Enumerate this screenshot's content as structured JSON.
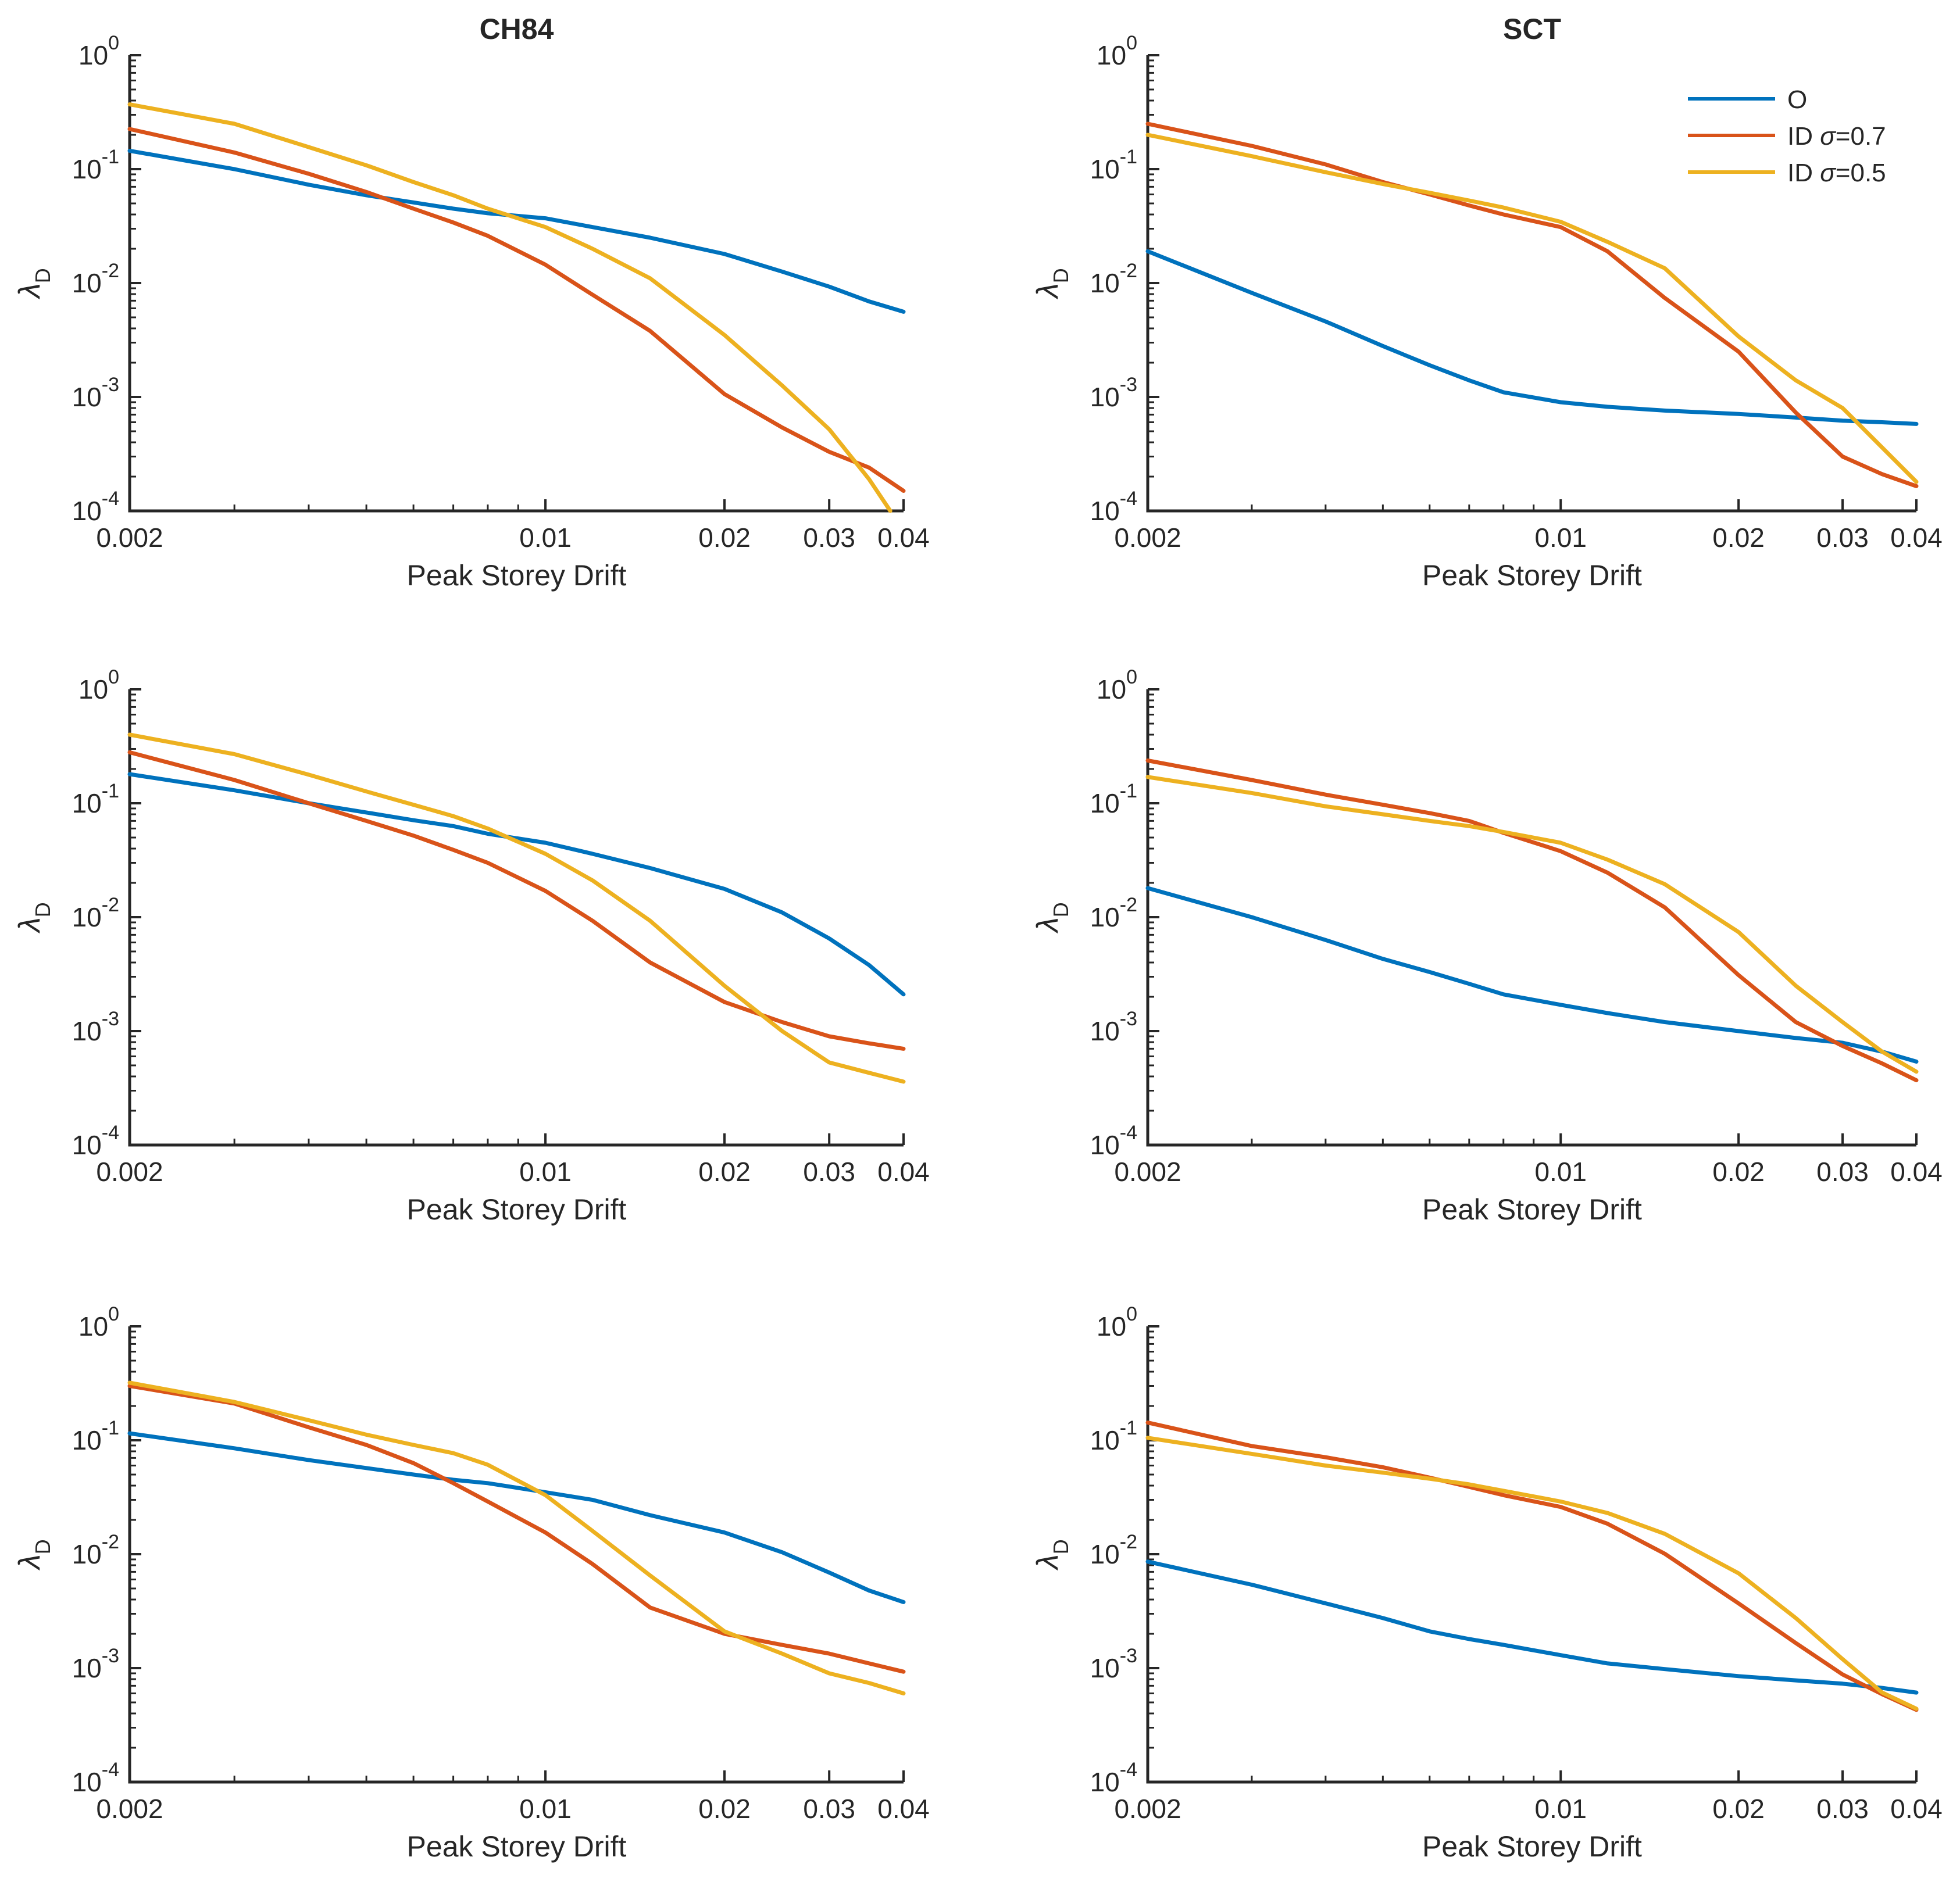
{
  "figure": {
    "column_titles": [
      "CH84",
      "SCT"
    ],
    "xlabel": "Peak Storey Drift",
    "ylabel_base": "λ",
    "ylabel_subscript": "D",
    "text_color": "#262626",
    "background_color": "#ffffff"
  },
  "legend": {
    "position": "top-right-inside-first-SCT-plot",
    "entries": [
      {
        "label": "O",
        "color": "#0072BD"
      },
      {
        "label": "ID σ=0.7",
        "color": "#D95319"
      },
      {
        "label": "ID σ=0.5",
        "color": "#EDB120"
      }
    ]
  },
  "chart_data": [
    {
      "id": "ch84-top",
      "type": "line",
      "title": "CH84",
      "xlabel": "Peak Storey Drift",
      "ylabel": "λD",
      "xscale": "log",
      "yscale": "log",
      "grid": false,
      "xlim": [
        0.002,
        0.04
      ],
      "ylim": [
        0.0001,
        1
      ],
      "xtick_values": [
        0.002,
        0.01,
        0.02,
        0.03,
        0.04
      ],
      "xtick_labels": [
        "0.002",
        "0.01",
        "0.02",
        "0.03",
        "0.04"
      ],
      "ytick_exponents": [
        0,
        -1,
        -2,
        -3,
        -4
      ],
      "series": [
        {
          "name": "O",
          "color": "#0072BD",
          "x": [
            0.002,
            0.003,
            0.004,
            0.005,
            0.006,
            0.007,
            0.008,
            0.01,
            0.012,
            0.015,
            0.02,
            0.025,
            0.03,
            0.035,
            0.04
          ],
          "y": [
            0.145,
            0.1,
            0.073,
            0.059,
            0.051,
            0.045,
            0.041,
            0.037,
            0.031,
            0.025,
            0.018,
            0.0126,
            0.0093,
            0.0069,
            0.0056
          ]
        },
        {
          "name": "ID σ=0.7",
          "color": "#D95319",
          "x": [
            0.002,
            0.003,
            0.004,
            0.005,
            0.006,
            0.007,
            0.008,
            0.01,
            0.012,
            0.015,
            0.02,
            0.025,
            0.03,
            0.035,
            0.04
          ],
          "y": [
            0.225,
            0.14,
            0.091,
            0.063,
            0.045,
            0.034,
            0.026,
            0.0145,
            0.0079,
            0.0038,
            0.00106,
            0.00054,
            0.00033,
            0.00024,
            0.00015
          ]
        },
        {
          "name": "ID σ=0.5",
          "color": "#EDB120",
          "x": [
            0.002,
            0.003,
            0.004,
            0.005,
            0.006,
            0.007,
            0.008,
            0.01,
            0.012,
            0.015,
            0.02,
            0.025,
            0.03,
            0.035,
            0.038
          ],
          "y": [
            0.37,
            0.25,
            0.156,
            0.108,
            0.077,
            0.059,
            0.045,
            0.031,
            0.02,
            0.011,
            0.0035,
            0.00126,
            0.00052,
            0.00019,
            0.0001
          ]
        }
      ]
    },
    {
      "id": "sct-top",
      "type": "line",
      "title": "SCT",
      "xlabel": "Peak Storey Drift",
      "ylabel": "λD",
      "xscale": "log",
      "yscale": "log",
      "grid": false,
      "xlim": [
        0.002,
        0.04
      ],
      "ylim": [
        0.0001,
        1
      ],
      "xtick_values": [
        0.002,
        0.01,
        0.02,
        0.03,
        0.04
      ],
      "xtick_labels": [
        "0.002",
        "0.01",
        "0.02",
        "0.03",
        "0.04"
      ],
      "ytick_exponents": [
        0,
        -1,
        -2,
        -3,
        -4
      ],
      "has_legend": true,
      "series": [
        {
          "name": "O",
          "color": "#0072BD",
          "x": [
            0.002,
            0.003,
            0.004,
            0.005,
            0.006,
            0.007,
            0.008,
            0.01,
            0.012,
            0.015,
            0.02,
            0.025,
            0.03,
            0.035,
            0.04
          ],
          "y": [
            0.019,
            0.0082,
            0.0046,
            0.0028,
            0.0019,
            0.0014,
            0.0011,
            0.0009,
            0.00082,
            0.00076,
            0.00071,
            0.00066,
            0.00062,
            0.0006,
            0.00058
          ]
        },
        {
          "name": "ID σ=0.7",
          "color": "#D95319",
          "x": [
            0.002,
            0.003,
            0.004,
            0.005,
            0.006,
            0.007,
            0.008,
            0.01,
            0.012,
            0.015,
            0.02,
            0.025,
            0.03,
            0.035,
            0.04
          ],
          "y": [
            0.25,
            0.16,
            0.11,
            0.077,
            0.06,
            0.048,
            0.04,
            0.031,
            0.019,
            0.0074,
            0.0025,
            0.00073,
            0.0003,
            0.00021,
            0.000165
          ]
        },
        {
          "name": "ID σ=0.5",
          "color": "#EDB120",
          "x": [
            0.002,
            0.003,
            0.004,
            0.005,
            0.006,
            0.007,
            0.008,
            0.01,
            0.012,
            0.015,
            0.02,
            0.025,
            0.03,
            0.035,
            0.04
          ],
          "y": [
            0.2,
            0.13,
            0.094,
            0.074,
            0.062,
            0.053,
            0.046,
            0.0345,
            0.023,
            0.0135,
            0.0034,
            0.0014,
            0.0008,
            0.00036,
            0.00018
          ]
        }
      ]
    },
    {
      "id": "ch84-middle",
      "type": "line",
      "title": null,
      "xlabel": "Peak Storey Drift",
      "ylabel": "λD",
      "xscale": "log",
      "yscale": "log",
      "grid": false,
      "xlim": [
        0.002,
        0.04
      ],
      "ylim": [
        0.0001,
        1
      ],
      "xtick_values": [
        0.002,
        0.01,
        0.02,
        0.03,
        0.04
      ],
      "xtick_labels": [
        "0.002",
        "0.01",
        "0.02",
        "0.03",
        "0.04"
      ],
      "ytick_exponents": [
        0,
        -1,
        -2,
        -3,
        -4
      ],
      "series": [
        {
          "name": "O",
          "color": "#0072BD",
          "x": [
            0.002,
            0.003,
            0.004,
            0.005,
            0.006,
            0.007,
            0.008,
            0.01,
            0.012,
            0.015,
            0.02,
            0.025,
            0.03,
            0.035,
            0.04
          ],
          "y": [
            0.18,
            0.13,
            0.1,
            0.083,
            0.071,
            0.063,
            0.054,
            0.045,
            0.036,
            0.027,
            0.0177,
            0.011,
            0.0065,
            0.0038,
            0.0021
          ]
        },
        {
          "name": "ID σ=0.7",
          "color": "#D95319",
          "x": [
            0.002,
            0.003,
            0.004,
            0.005,
            0.006,
            0.007,
            0.008,
            0.01,
            0.012,
            0.015,
            0.02,
            0.025,
            0.03,
            0.035,
            0.04
          ],
          "y": [
            0.28,
            0.16,
            0.1,
            0.07,
            0.052,
            0.039,
            0.03,
            0.017,
            0.0093,
            0.004,
            0.0018,
            0.0012,
            0.0009,
            0.00078,
            0.0007
          ]
        },
        {
          "name": "ID σ=0.5",
          "color": "#EDB120",
          "x": [
            0.002,
            0.003,
            0.004,
            0.005,
            0.006,
            0.007,
            0.008,
            0.01,
            0.012,
            0.015,
            0.02,
            0.025,
            0.03,
            0.035,
            0.04
          ],
          "y": [
            0.4,
            0.27,
            0.178,
            0.127,
            0.097,
            0.077,
            0.06,
            0.036,
            0.021,
            0.0093,
            0.0025,
            0.001,
            0.00053,
            0.00043,
            0.00036
          ]
        }
      ]
    },
    {
      "id": "sct-middle",
      "type": "line",
      "title": null,
      "xlabel": "Peak Storey Drift",
      "ylabel": "λD",
      "xscale": "log",
      "yscale": "log",
      "grid": false,
      "xlim": [
        0.002,
        0.04
      ],
      "ylim": [
        0.0001,
        1
      ],
      "xtick_values": [
        0.002,
        0.01,
        0.02,
        0.03,
        0.04
      ],
      "xtick_labels": [
        "0.002",
        "0.01",
        "0.02",
        "0.03",
        "0.04"
      ],
      "ytick_exponents": [
        0,
        -1,
        -2,
        -3,
        -4
      ],
      "series": [
        {
          "name": "O",
          "color": "#0072BD",
          "x": [
            0.002,
            0.003,
            0.004,
            0.005,
            0.006,
            0.007,
            0.008,
            0.01,
            0.012,
            0.015,
            0.02,
            0.025,
            0.03,
            0.035,
            0.04
          ],
          "y": [
            0.018,
            0.01,
            0.0063,
            0.0043,
            0.0033,
            0.0026,
            0.0021,
            0.0017,
            0.00144,
            0.0012,
            0.001,
            0.00087,
            0.00079,
            0.00066,
            0.00054
          ]
        },
        {
          "name": "ID σ=0.7",
          "color": "#D95319",
          "x": [
            0.002,
            0.003,
            0.004,
            0.005,
            0.006,
            0.007,
            0.008,
            0.01,
            0.012,
            0.015,
            0.02,
            0.025,
            0.03,
            0.035,
            0.04
          ],
          "y": [
            0.237,
            0.16,
            0.119,
            0.097,
            0.082,
            0.07,
            0.055,
            0.038,
            0.0246,
            0.0122,
            0.0031,
            0.0012,
            0.00074,
            0.00052,
            0.00037
          ]
        },
        {
          "name": "ID σ=0.5",
          "color": "#EDB120",
          "x": [
            0.002,
            0.003,
            0.004,
            0.005,
            0.006,
            0.007,
            0.008,
            0.01,
            0.012,
            0.015,
            0.02,
            0.025,
            0.03,
            0.035,
            0.04
          ],
          "y": [
            0.17,
            0.123,
            0.094,
            0.08,
            0.07,
            0.063,
            0.056,
            0.045,
            0.032,
            0.0195,
            0.0074,
            0.0025,
            0.0012,
            0.00066,
            0.00044
          ]
        }
      ]
    },
    {
      "id": "ch84-bottom",
      "type": "line",
      "title": null,
      "xlabel": "Peak Storey Drift",
      "ylabel": "λD",
      "xscale": "log",
      "yscale": "log",
      "grid": false,
      "xlim": [
        0.002,
        0.04
      ],
      "ylim": [
        0.0001,
        1
      ],
      "xtick_values": [
        0.002,
        0.01,
        0.02,
        0.03,
        0.04
      ],
      "xtick_labels": [
        "0.002",
        "0.01",
        "0.02",
        "0.03",
        "0.04"
      ],
      "ytick_exponents": [
        0,
        -1,
        -2,
        -3,
        -4
      ],
      "series": [
        {
          "name": "O",
          "color": "#0072BD",
          "x": [
            0.002,
            0.003,
            0.004,
            0.005,
            0.006,
            0.007,
            0.008,
            0.01,
            0.012,
            0.015,
            0.02,
            0.025,
            0.03,
            0.035,
            0.04
          ],
          "y": [
            0.115,
            0.085,
            0.067,
            0.057,
            0.05,
            0.045,
            0.042,
            0.035,
            0.03,
            0.022,
            0.0155,
            0.0104,
            0.0069,
            0.0048,
            0.0038
          ]
        },
        {
          "name": "ID σ=0.7",
          "color": "#D95319",
          "x": [
            0.002,
            0.003,
            0.004,
            0.005,
            0.006,
            0.007,
            0.008,
            0.01,
            0.012,
            0.015,
            0.02,
            0.025,
            0.03,
            0.035,
            0.04
          ],
          "y": [
            0.3,
            0.21,
            0.13,
            0.091,
            0.063,
            0.042,
            0.029,
            0.0155,
            0.0082,
            0.0034,
            0.002,
            0.0016,
            0.00134,
            0.0011,
            0.00093
          ]
        },
        {
          "name": "ID σ=0.5",
          "color": "#EDB120",
          "x": [
            0.002,
            0.003,
            0.004,
            0.005,
            0.006,
            0.007,
            0.008,
            0.01,
            0.012,
            0.015,
            0.02,
            0.025,
            0.03,
            0.035,
            0.04
          ],
          "y": [
            0.32,
            0.217,
            0.15,
            0.112,
            0.091,
            0.077,
            0.061,
            0.033,
            0.016,
            0.0065,
            0.0021,
            0.00134,
            0.0009,
            0.00074,
            0.0006
          ]
        }
      ]
    },
    {
      "id": "sct-bottom",
      "type": "line",
      "title": null,
      "xlabel": "Peak Storey Drift",
      "ylabel": "λD",
      "xscale": "log",
      "yscale": "log",
      "grid": false,
      "xlim": [
        0.002,
        0.04
      ],
      "ylim": [
        0.0001,
        1
      ],
      "xtick_values": [
        0.002,
        0.01,
        0.02,
        0.03,
        0.04
      ],
      "xtick_labels": [
        "0.002",
        "0.01",
        "0.02",
        "0.03",
        "0.04"
      ],
      "ytick_exponents": [
        0,
        -1,
        -2,
        -3,
        -4
      ],
      "series": [
        {
          "name": "O",
          "color": "#0072BD",
          "x": [
            0.002,
            0.003,
            0.004,
            0.005,
            0.006,
            0.007,
            0.008,
            0.01,
            0.012,
            0.015,
            0.02,
            0.025,
            0.03,
            0.035,
            0.04
          ],
          "y": [
            0.0086,
            0.0054,
            0.0037,
            0.00275,
            0.0021,
            0.0018,
            0.0016,
            0.0013,
            0.0011,
            0.00098,
            0.00085,
            0.00078,
            0.00073,
            0.00067,
            0.00061
          ]
        },
        {
          "name": "ID σ=0.7",
          "color": "#D95319",
          "x": [
            0.002,
            0.003,
            0.004,
            0.005,
            0.006,
            0.007,
            0.008,
            0.01,
            0.012,
            0.015,
            0.02,
            0.025,
            0.03,
            0.035,
            0.04
          ],
          "y": [
            0.143,
            0.089,
            0.071,
            0.058,
            0.047,
            0.039,
            0.033,
            0.026,
            0.0185,
            0.0101,
            0.0037,
            0.00166,
            0.00088,
            0.00059,
            0.00043
          ]
        },
        {
          "name": "ID σ=0.5",
          "color": "#EDB120",
          "x": [
            0.002,
            0.003,
            0.004,
            0.005,
            0.006,
            0.007,
            0.008,
            0.01,
            0.012,
            0.015,
            0.02,
            0.025,
            0.03,
            0.035,
            0.04
          ],
          "y": [
            0.105,
            0.076,
            0.06,
            0.052,
            0.046,
            0.041,
            0.036,
            0.029,
            0.023,
            0.0151,
            0.0068,
            0.00275,
            0.0012,
            0.00061,
            0.00044
          ]
        }
      ]
    }
  ]
}
